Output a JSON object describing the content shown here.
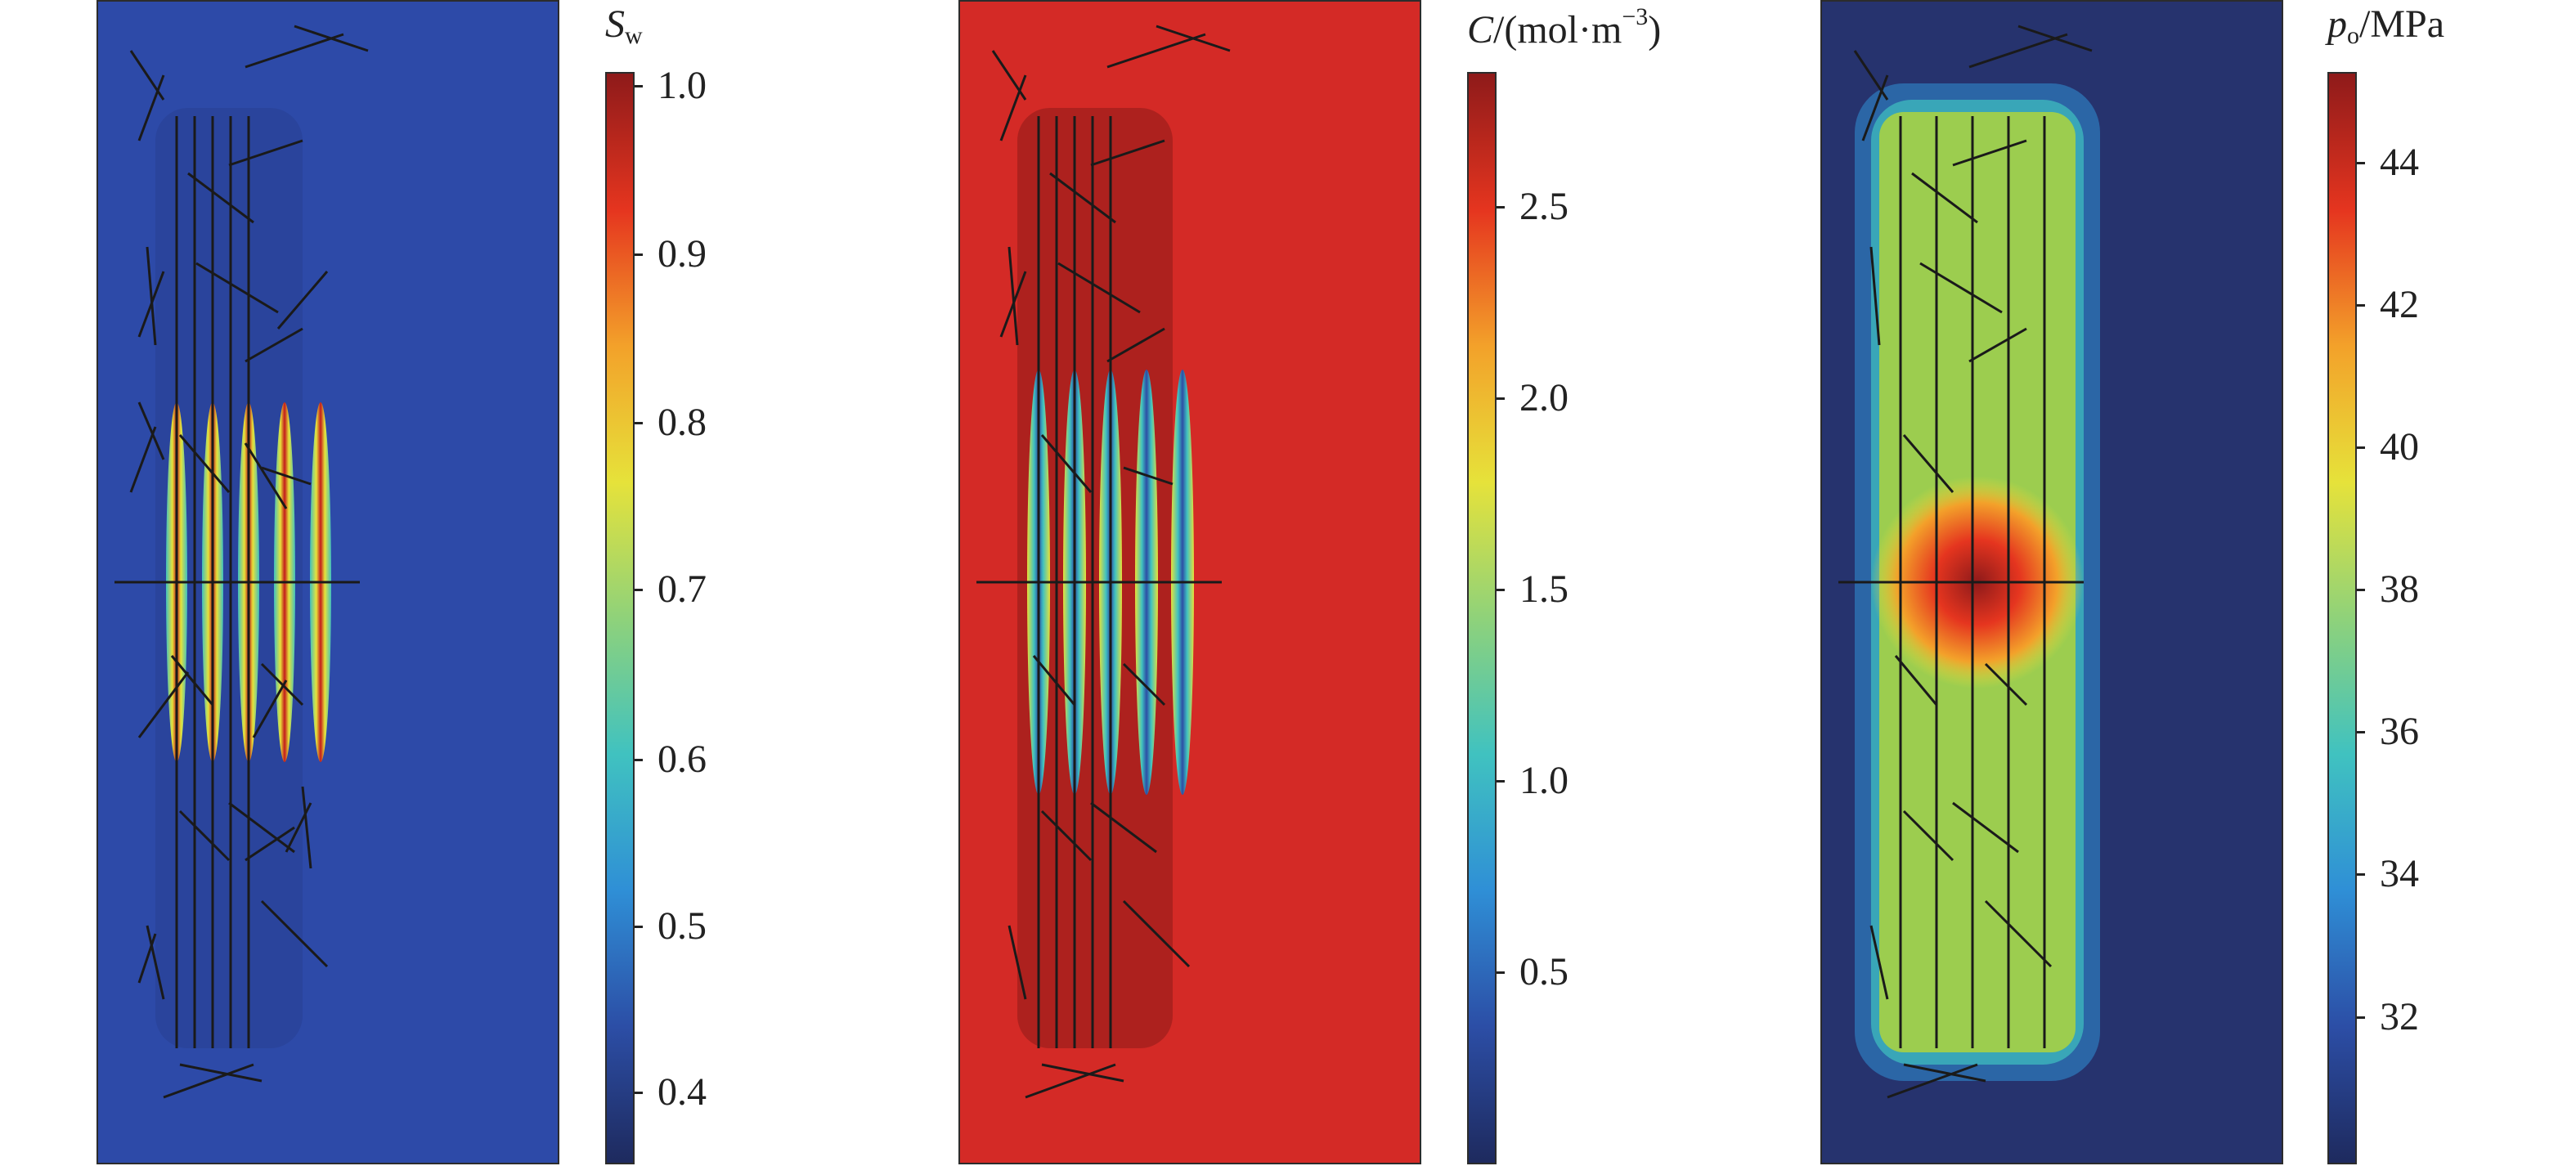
{
  "panels": [
    {
      "id": "sw",
      "colorbar_title": {
        "symbol": "S",
        "subscript": "w",
        "unit": ""
      },
      "colorbar_ticks": [
        "0.4",
        "0.5",
        "0.6",
        "0.7",
        "0.8",
        "0.9",
        "1.0"
      ],
      "background_color": "#2d4aa8"
    },
    {
      "id": "c",
      "colorbar_title": {
        "symbol": "C",
        "unit_prefix": "/(mol·m",
        "superscript": "−3",
        "unit_suffix": ")"
      },
      "colorbar_ticks": [
        "0.5",
        "1.0",
        "1.5",
        "2.0",
        "2.5"
      ],
      "background_color": "#d42a26"
    },
    {
      "id": "po",
      "colorbar_title": {
        "symbol": "p",
        "subscript": "o",
        "unit": "/MPa"
      },
      "colorbar_ticks": [
        "32",
        "34",
        "36",
        "38",
        "40",
        "42",
        "44"
      ],
      "background_color": "#26336e"
    }
  ],
  "chart_data": [
    {
      "type": "heatmap",
      "variable": "S_w",
      "colorbar_range": [
        0.37,
        1.0
      ],
      "colorbar_ticks": [
        0.4,
        0.5,
        0.6,
        0.7,
        0.8,
        0.9,
        1.0
      ]
    },
    {
      "type": "heatmap",
      "variable": "C",
      "unit": "mol·m^-3",
      "colorbar_range": [
        0.0,
        2.8
      ],
      "colorbar_ticks": [
        0.5,
        1.0,
        1.5,
        2.0,
        2.5
      ]
    },
    {
      "type": "heatmap",
      "variable": "p_o",
      "unit": "MPa",
      "colorbar_range": [
        30.0,
        45.3
      ],
      "colorbar_ticks": [
        32,
        34,
        36,
        38,
        40,
        42,
        44
      ]
    }
  ],
  "colors": {
    "jet_stops": [
      "#1e2a5e",
      "#2c4ea6",
      "#2f8fd6",
      "#40c2c0",
      "#8fd27a",
      "#e6e23a",
      "#f3a12a",
      "#e5351f",
      "#8e1a1a"
    ]
  }
}
